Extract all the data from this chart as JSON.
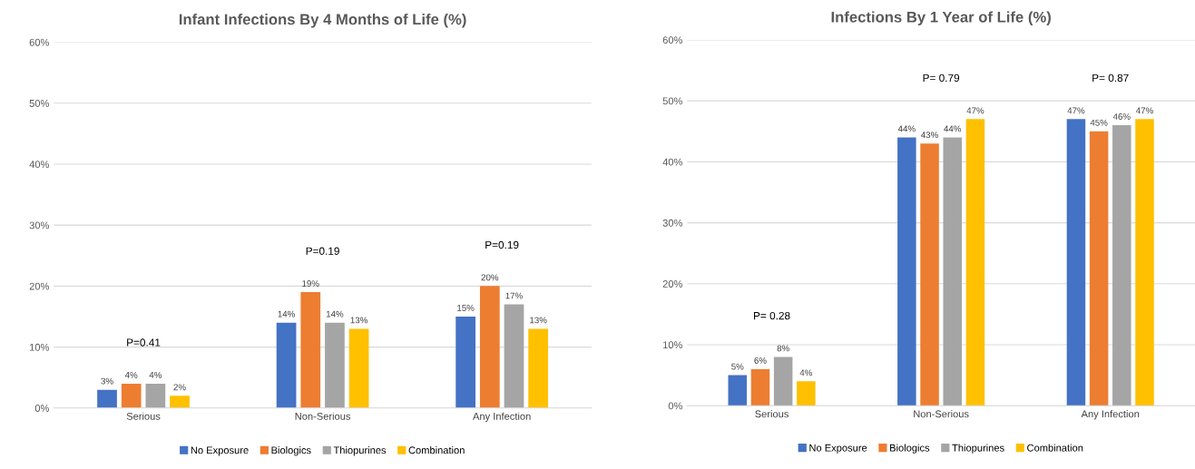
{
  "chart_data": [
    {
      "type": "bar",
      "title": "Infant Infections By 4 Months of Life (%)",
      "categories": [
        "Serious",
        "Non-Serious",
        "Any Infection"
      ],
      "series": [
        {
          "name": "No Exposure",
          "color": "#4472c4",
          "values": [
            3,
            14,
            15
          ],
          "value_labels": [
            "3%",
            "14%",
            "15%"
          ]
        },
        {
          "name": "Biologics",
          "color": "#ed7d31",
          "values": [
            4,
            19,
            20
          ],
          "value_labels": [
            "4%",
            "19%",
            "20%"
          ]
        },
        {
          "name": "Thiopurines",
          "color": "#a5a5a5",
          "values": [
            4,
            14,
            17
          ],
          "value_labels": [
            "4%",
            "14%",
            "17%"
          ]
        },
        {
          "name": "Combination",
          "color": "#ffc000",
          "values": [
            2,
            13,
            13
          ],
          "value_labels": [
            "2%",
            "13%",
            "13%"
          ]
        }
      ],
      "ylim": [
        0,
        60
      ],
      "yticks": [
        {
          "value": 0,
          "label": "0%"
        },
        {
          "value": 10,
          "label": "10%"
        },
        {
          "value": 20,
          "label": "20%"
        },
        {
          "value": 30,
          "label": "30%"
        },
        {
          "value": 40,
          "label": "40%"
        },
        {
          "value": 50,
          "label": "50%"
        },
        {
          "value": 60,
          "label": "60%"
        }
      ],
      "annotations": [
        "P=0.41",
        "P=0.19",
        "P=0.19"
      ],
      "grid": "y",
      "legend": "bottom"
    },
    {
      "type": "bar",
      "title": "Infections By 1 Year of Life (%)",
      "categories": [
        "Serious",
        "Non-Serious",
        "Any Infection"
      ],
      "series": [
        {
          "name": "No Exposure",
          "color": "#4472c4",
          "values": [
            5,
            44,
            47
          ],
          "value_labels": [
            "5%",
            "44%",
            "47%"
          ]
        },
        {
          "name": "Biologics",
          "color": "#ed7d31",
          "values": [
            6,
            43,
            45
          ],
          "value_labels": [
            "6%",
            "43%",
            "45%"
          ]
        },
        {
          "name": "Thiopurines",
          "color": "#a5a5a5",
          "values": [
            8,
            44,
            46
          ],
          "value_labels": [
            "8%",
            "44%",
            "46%"
          ]
        },
        {
          "name": "Combination",
          "color": "#ffc000",
          "values": [
            4,
            47,
            47
          ],
          "value_labels": [
            "4%",
            "47%",
            "47%"
          ]
        }
      ],
      "ylim": [
        0,
        60
      ],
      "yticks": [
        {
          "value": 0,
          "label": "0%"
        },
        {
          "value": 10,
          "label": "10%"
        },
        {
          "value": 20,
          "label": "20%"
        },
        {
          "value": 30,
          "label": "30%"
        },
        {
          "value": 40,
          "label": "40%"
        },
        {
          "value": 50,
          "label": "50%"
        },
        {
          "value": 60,
          "label": "60%"
        }
      ],
      "annotations": [
        "P= 0.28",
        "P= 0.79",
        "P= 0.87"
      ],
      "grid": "y",
      "legend": "bottom"
    }
  ]
}
